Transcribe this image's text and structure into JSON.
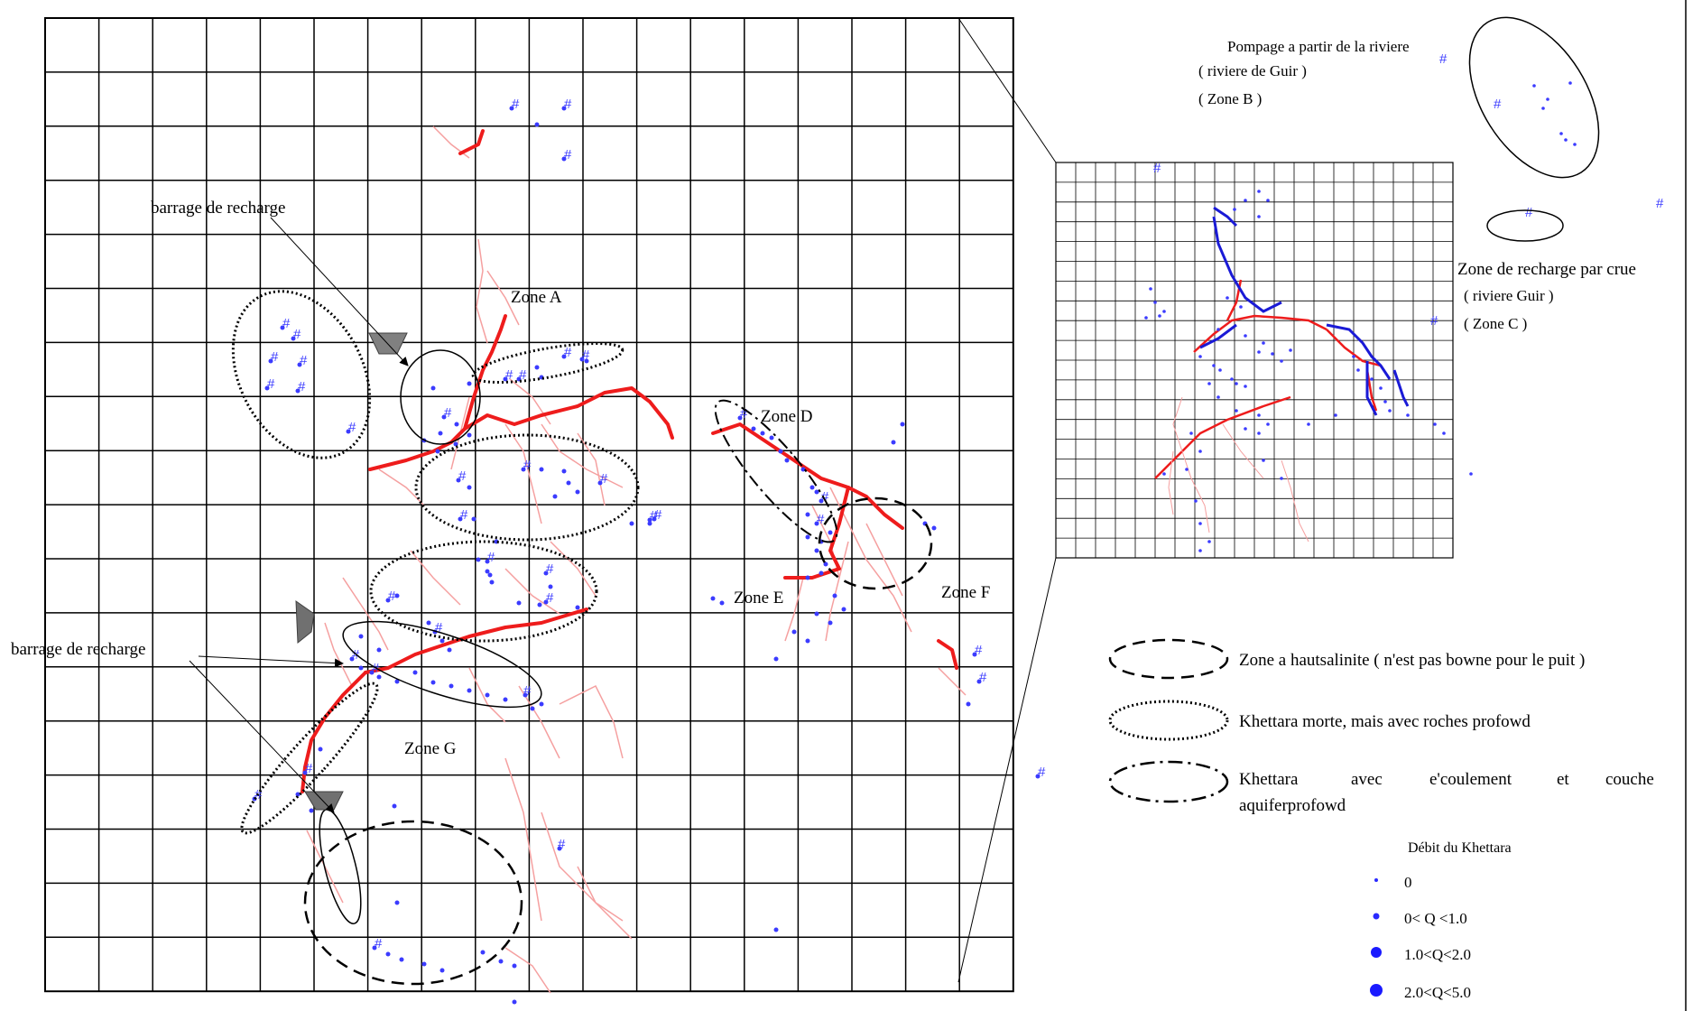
{
  "colors": {
    "main_channel": "#ee1c1c",
    "channel_branch": "#f5a0a0",
    "well_marker": "#3b3bff",
    "blue_channel": "#1a1ad6",
    "grid": "#000000",
    "recharge_dam": "#808080"
  },
  "labels": {
    "barrage_top": "barrage de recharge",
    "barrage_bottom": "barrage de recharge",
    "zone_a": "Zone A",
    "zone_d": "Zone D",
    "zone_e": "Zone E",
    "zone_f": "Zone F",
    "zone_g": "Zone G"
  },
  "zone_b": {
    "line1": "Pompage a partir de la riviere",
    "line2": "( riviere de Guir )",
    "line3": "( Zone B )"
  },
  "zone_c": {
    "line1": "Zone de recharge par crue",
    "line2": "( riviere Guir )",
    "line3": "( Zone C )"
  },
  "legend": {
    "dashed": "Zone a hautsalinite ( n'est pas bowne pour le puit )",
    "dotted": "Khettara morte, mais avec roches profowd",
    "dashdot_line1_words": [
      "Khettara",
      "avec",
      "e'coulement",
      "et",
      "couche"
    ],
    "dashdot_line2": "aquiferprofowd",
    "flow_title": "Débit du Khettara",
    "flow_classes": [
      "0",
      "0< Q <1.0",
      "1.0<Q<2.0",
      "2.0<Q<5.0"
    ]
  },
  "well_symbol": "#"
}
